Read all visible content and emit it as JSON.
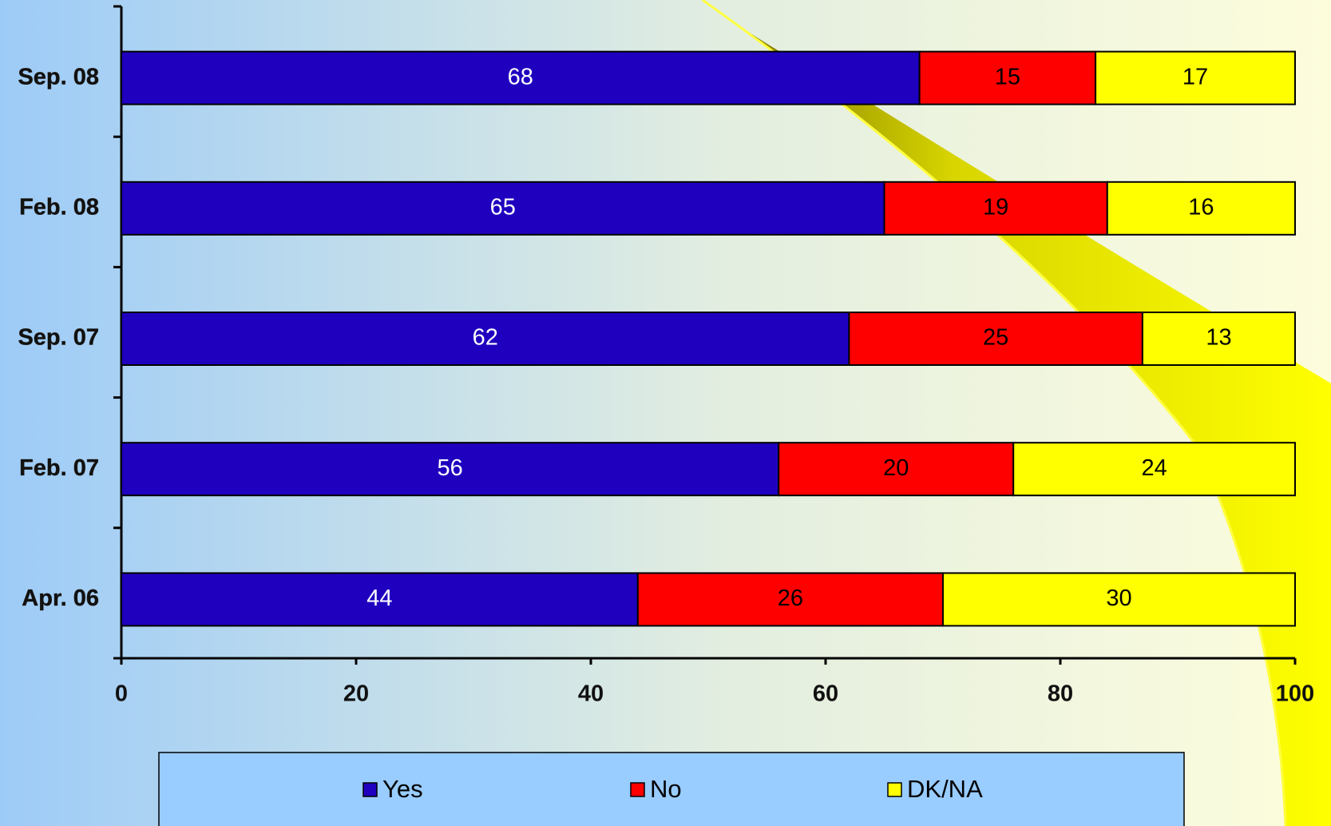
{
  "chart_data": {
    "type": "stacked-bar-horizontal",
    "categories": [
      "Sep. 08",
      "Feb. 08",
      "Sep. 07",
      "Feb. 07",
      "Apr. 06"
    ],
    "series": [
      {
        "name": "Yes",
        "color": "#1f00bf",
        "values": [
          68,
          65,
          62,
          56,
          44
        ]
      },
      {
        "name": "No",
        "color": "#ff0000",
        "values": [
          15,
          19,
          25,
          20,
          26
        ]
      },
      {
        "name": "DK/NA",
        "color": "#ffff00",
        "values": [
          17,
          16,
          13,
          24,
          30
        ]
      }
    ],
    "xlim": [
      0,
      100
    ],
    "xticks": [
      0,
      20,
      40,
      60,
      80,
      100
    ]
  }
}
